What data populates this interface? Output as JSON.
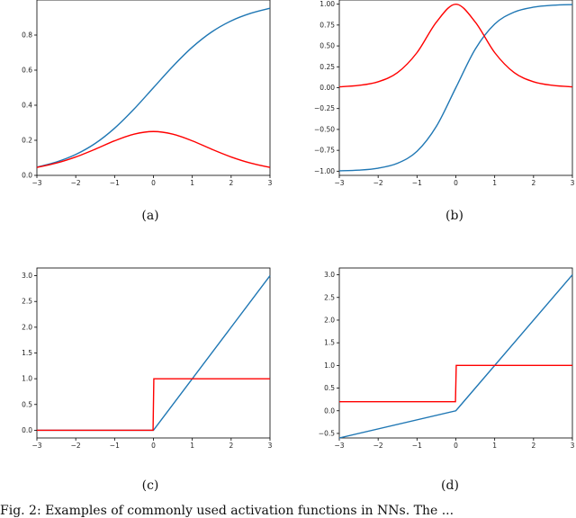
{
  "captions": {
    "a": "(a)",
    "b": "(b)",
    "c": "(c)",
    "d": "(d)"
  },
  "figure_caption": "Fig. 2: Examples of commonly used activation functions in NNs. The ...",
  "colors": {
    "function": "#1f77b4",
    "derivative": "#ff0000"
  },
  "chart_data": [
    {
      "type": "line",
      "title": "",
      "xlabel": "",
      "ylabel": "",
      "xlim": [
        -3,
        3
      ],
      "ylim": [
        0,
        1
      ],
      "xticks": [
        -3,
        -2,
        -1,
        0,
        1,
        2,
        3
      ],
      "yticks": [
        0.0,
        0.2,
        0.4,
        0.6,
        0.8
      ],
      "ytick_labels": [
        "0.0",
        "0.2",
        "0.4",
        "0.6",
        "0.8"
      ],
      "grid": false,
      "series": [
        {
          "color": "#1f77b4",
          "x": [
            -3,
            -2.5,
            -2,
            -1.5,
            -1,
            -0.5,
            0,
            0.5,
            1,
            1.5,
            2,
            2.5,
            3
          ],
          "y": [
            0.047,
            0.076,
            0.119,
            0.182,
            0.269,
            0.378,
            0.5,
            0.622,
            0.731,
            0.818,
            0.881,
            0.924,
            0.953
          ]
        },
        {
          "color": "#ff0000",
          "x": [
            -3,
            -2.5,
            -2,
            -1.5,
            -1,
            -0.5,
            0,
            0.5,
            1,
            1.5,
            2,
            2.5,
            3
          ],
          "y": [
            0.045,
            0.07,
            0.105,
            0.149,
            0.197,
            0.235,
            0.25,
            0.235,
            0.197,
            0.149,
            0.105,
            0.07,
            0.045
          ]
        }
      ]
    },
    {
      "type": "line",
      "title": "",
      "xlabel": "",
      "ylabel": "",
      "xlim": [
        -3,
        3
      ],
      "ylim": [
        -1.05,
        1.05
      ],
      "xticks": [
        -3,
        -2,
        -1,
        0,
        1,
        2,
        3
      ],
      "yticks": [
        -1.0,
        -0.75,
        -0.5,
        -0.25,
        0.0,
        0.25,
        0.5,
        0.75,
        1.0
      ],
      "ytick_labels": [
        "−1.00",
        "−0.75",
        "−0.50",
        "−0.25",
        "0.00",
        "0.25",
        "0.50",
        "0.75",
        "1.00"
      ],
      "grid": false,
      "series": [
        {
          "color": "#1f77b4",
          "x": [
            -3,
            -2.5,
            -2,
            -1.5,
            -1,
            -0.5,
            0,
            0.5,
            1,
            1.5,
            2,
            2.5,
            3
          ],
          "y": [
            -0.995,
            -0.987,
            -0.964,
            -0.905,
            -0.762,
            -0.462,
            0,
            0.462,
            0.762,
            0.905,
            0.964,
            0.987,
            0.995
          ]
        },
        {
          "color": "#ff0000",
          "x": [
            -3,
            -2.5,
            -2,
            -1.5,
            -1,
            -0.5,
            0,
            0.5,
            1,
            1.5,
            2,
            2.5,
            3
          ],
          "y": [
            0.01,
            0.027,
            0.071,
            0.181,
            0.42,
            0.786,
            1.0,
            0.786,
            0.42,
            0.181,
            0.071,
            0.027,
            0.01
          ]
        }
      ]
    },
    {
      "type": "line",
      "title": "",
      "xlabel": "",
      "ylabel": "",
      "xlim": [
        -3,
        3
      ],
      "ylim": [
        -0.15,
        3.15
      ],
      "xticks": [
        -3,
        -2,
        -1,
        0,
        1,
        2,
        3
      ],
      "yticks": [
        0.0,
        0.5,
        1.0,
        1.5,
        2.0,
        2.5,
        3.0
      ],
      "ytick_labels": [
        "0.0",
        "0.5",
        "1.0",
        "1.5",
        "2.0",
        "2.5",
        "3.0"
      ],
      "grid": false,
      "series": [
        {
          "color": "#1f77b4",
          "x": [
            -3,
            0,
            3
          ],
          "y": [
            0,
            0,
            3
          ]
        },
        {
          "color": "#ff0000",
          "x": [
            -3,
            -0.01,
            0.01,
            3
          ],
          "y": [
            0,
            0,
            1,
            1
          ]
        }
      ]
    },
    {
      "type": "line",
      "title": "",
      "xlabel": "",
      "ylabel": "",
      "xlim": [
        -3,
        3
      ],
      "ylim": [
        -0.6,
        3.15
      ],
      "xticks": [
        -3,
        -2,
        -1,
        0,
        1,
        2,
        3
      ],
      "yticks": [
        -0.5,
        0.0,
        0.5,
        1.0,
        1.5,
        2.0,
        2.5,
        3.0
      ],
      "ytick_labels": [
        "−0.5",
        "0.0",
        "0.5",
        "1.0",
        "1.5",
        "2.0",
        "2.5",
        "3.0"
      ],
      "grid": false,
      "series": [
        {
          "color": "#1f77b4",
          "x": [
            -3,
            0,
            3
          ],
          "y": [
            -0.6,
            0,
            3
          ]
        },
        {
          "color": "#ff0000",
          "x": [
            -3,
            -0.01,
            0.01,
            3
          ],
          "y": [
            0.2,
            0.2,
            1,
            1
          ]
        }
      ]
    }
  ]
}
